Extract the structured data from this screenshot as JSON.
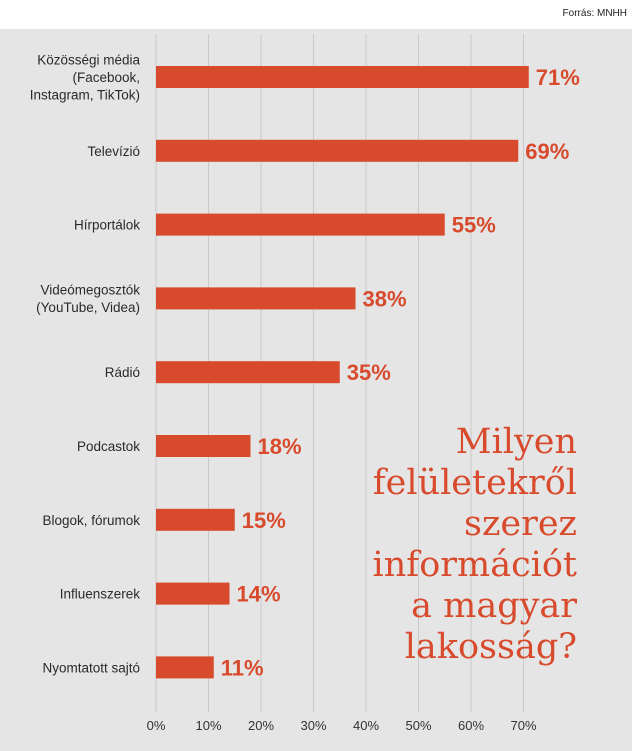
{
  "source": "Forrás: MNHH",
  "headline": [
    "Milyen",
    "felületekről",
    "szerez",
    "információt",
    "a magyar",
    "lakosság?"
  ],
  "colors": {
    "bar": "#d84a2c",
    "panel": "#e5e5e6",
    "text": "#2a2a2a"
  },
  "chart_data": {
    "type": "bar",
    "orientation": "horizontal",
    "title": "",
    "xlabel": "",
    "ylabel": "",
    "xlim": [
      0,
      70
    ],
    "ticks": [
      "0%",
      "10%",
      "20%",
      "30%",
      "40%",
      "50%",
      "60%",
      "70%"
    ],
    "grid": true,
    "categories": [
      [
        "Közösségi média",
        "(Facebook,",
        "Instagram, TikTok)"
      ],
      [
        "Televízió"
      ],
      [
        "Hírportálok"
      ],
      [
        "Videómegosztók",
        "(YouTube, Videa)"
      ],
      [
        "Rádió"
      ],
      [
        "Podcastok"
      ],
      [
        "Blogok, fórumok"
      ],
      [
        "Influenszerek"
      ],
      [
        "Nyomtatott sajtó"
      ]
    ],
    "values": [
      71,
      69,
      55,
      38,
      35,
      18,
      15,
      14,
      11
    ],
    "value_labels": [
      "71%",
      "69%",
      "55%",
      "38%",
      "35%",
      "18%",
      "15%",
      "14%",
      "11%"
    ]
  }
}
